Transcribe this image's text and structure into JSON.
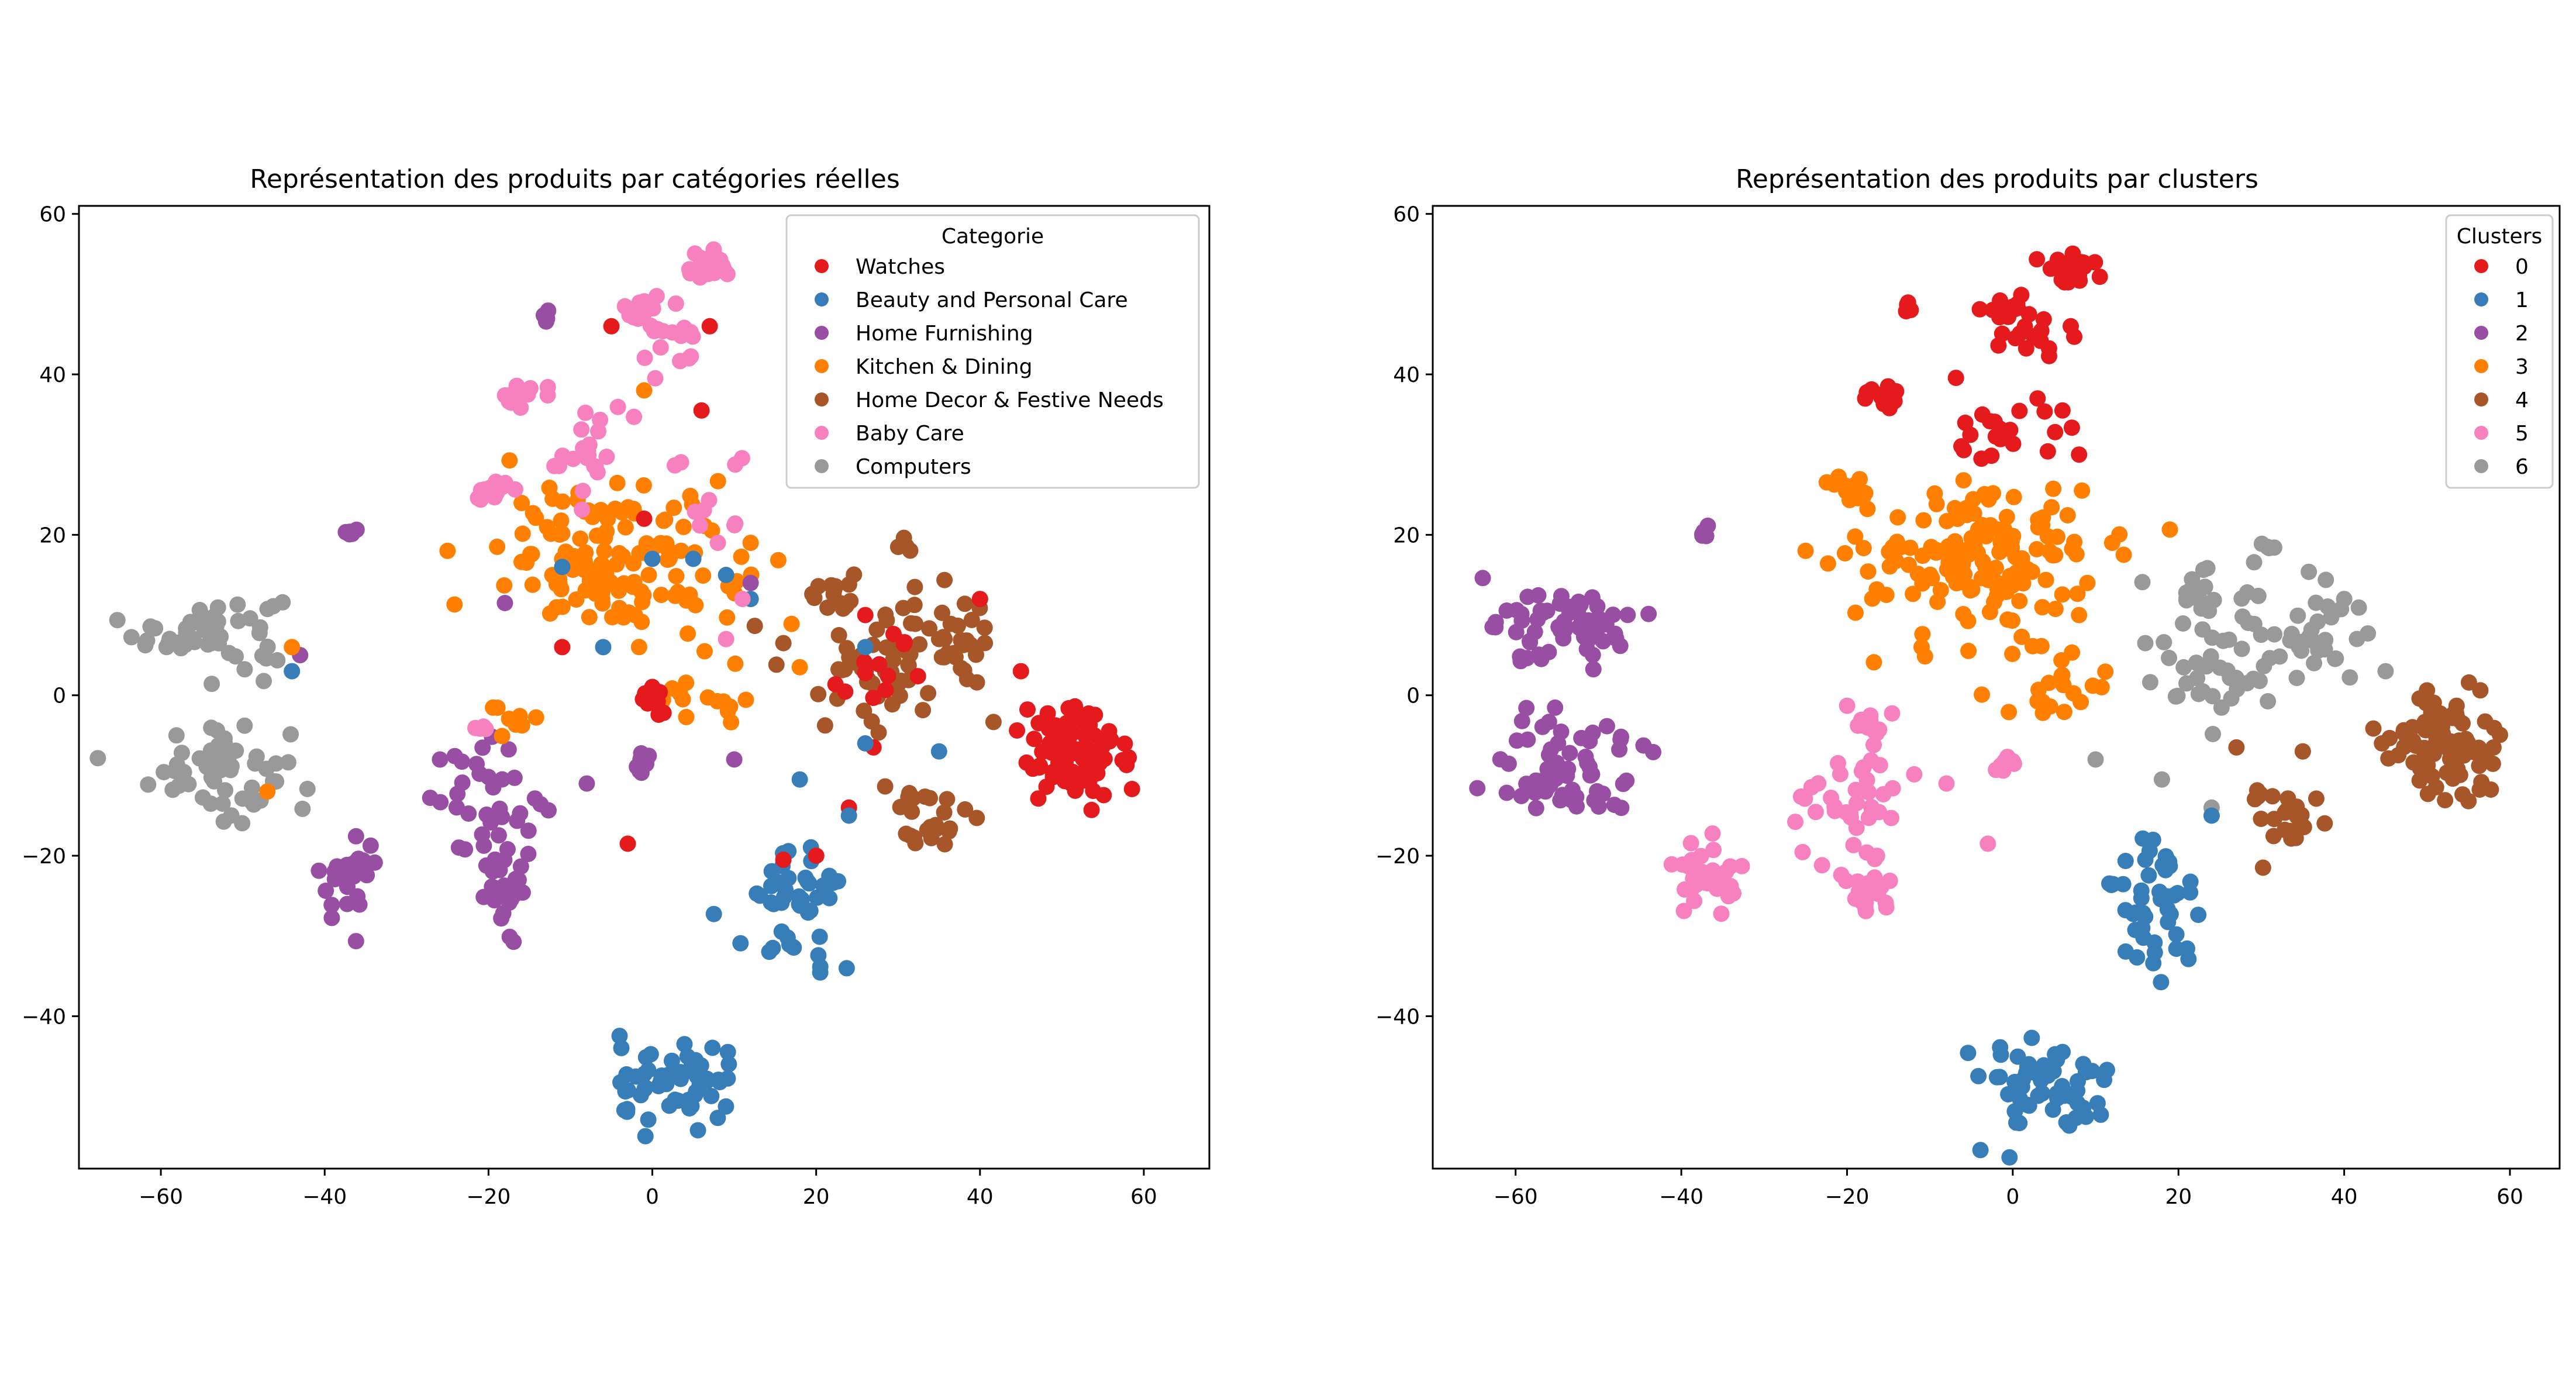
{
  "chart_data": [
    {
      "type": "scatter",
      "title": "Représentation des produits par catégories réelles",
      "xlabel": "",
      "ylabel": "",
      "xlim": [
        -70,
        68
      ],
      "ylim": [
        -59,
        61
      ],
      "xticks": [
        -60,
        -40,
        -20,
        0,
        20,
        40,
        60
      ],
      "xtick_labels": [
        "−60",
        "−40",
        "−20",
        "0",
        "20",
        "40",
        "60"
      ],
      "yticks": [
        -40,
        -20,
        0,
        20,
        40,
        60
      ],
      "ytick_labels": [
        "−40",
        "−20",
        "0",
        "20",
        "40",
        "60"
      ],
      "grid": false,
      "legend": {
        "title": "Categorie",
        "placement": "top-right",
        "entries": [
          {
            "label": "Watches",
            "color": "#e41a1c"
          },
          {
            "label": "Beauty and Personal Care",
            "color": "#377eb8"
          },
          {
            "label": "Home Furnishing",
            "color": "#984ea3"
          },
          {
            "label": "Kitchen & Dining",
            "color": "#ff7f00"
          },
          {
            "label": "Home Decor & Festive Needs",
            "color": "#a65628"
          },
          {
            "label": "Baby Care",
            "color": "#f781bf"
          },
          {
            "label": "Computers",
            "color": "#999999"
          }
        ]
      },
      "clusters": [
        {
          "series": 6,
          "cx": -54,
          "cy": 8,
          "sx": 4.5,
          "sy": 2.3,
          "n": 55
        },
        {
          "series": 6,
          "cx": -53,
          "cy": -9,
          "sx": 4.2,
          "sy": 3.2,
          "n": 55
        },
        {
          "series": 2,
          "cx": -37,
          "cy": -23,
          "sx": 1.8,
          "sy": 2.5,
          "n": 30
        },
        {
          "series": 2,
          "cx": -37,
          "cy": 20.5,
          "sx": 0.5,
          "sy": 0.4,
          "n": 5
        },
        {
          "series": 2,
          "cx": -20,
          "cy": -13,
          "sx": 3.5,
          "sy": 3.5,
          "n": 35
        },
        {
          "series": 2,
          "cx": -17.5,
          "cy": -25,
          "sx": 1.5,
          "sy": 2.5,
          "n": 25
        },
        {
          "series": 2,
          "cx": -1,
          "cy": -8.5,
          "sx": 1,
          "sy": 0.8,
          "n": 8
        },
        {
          "series": 2,
          "cx": -13,
          "cy": 47.5,
          "sx": 0.4,
          "sy": 0.4,
          "n": 4
        },
        {
          "series": 3,
          "cx": -4,
          "cy": 17,
          "sx": 7,
          "sy": 4.5,
          "n": 140
        },
        {
          "series": 3,
          "cx": -17,
          "cy": -3,
          "sx": 1.5,
          "sy": 1.2,
          "n": 10
        },
        {
          "series": 3,
          "cx": 5,
          "cy": 0,
          "sx": 3,
          "sy": 2.5,
          "n": 15
        },
        {
          "series": 5,
          "cx": 7,
          "cy": 53,
          "sx": 1.5,
          "sy": 1,
          "n": 25
        },
        {
          "series": 5,
          "cx": -1,
          "cy": 48,
          "sx": 1.2,
          "sy": 1,
          "n": 15
        },
        {
          "series": 5,
          "cx": 2.5,
          "cy": 44,
          "sx": 2,
          "sy": 2,
          "n": 15
        },
        {
          "series": 5,
          "cx": -16,
          "cy": 37.5,
          "sx": 1.2,
          "sy": 0.8,
          "n": 15
        },
        {
          "series": 5,
          "cx": -20,
          "cy": 25.5,
          "sx": 1.3,
          "sy": 1,
          "n": 15
        },
        {
          "series": 5,
          "cx": -8,
          "cy": 30,
          "sx": 3,
          "sy": 3.5,
          "n": 20
        },
        {
          "series": 5,
          "cx": 8,
          "cy": 27,
          "sx": 2.5,
          "sy": 4,
          "n": 10
        },
        {
          "series": 5,
          "cx": -21,
          "cy": -4,
          "sx": 0.6,
          "sy": 0.5,
          "n": 5
        },
        {
          "series": 4,
          "cx": 22,
          "cy": 13,
          "sx": 1.5,
          "sy": 1.5,
          "n": 15
        },
        {
          "series": 4,
          "cx": 27,
          "cy": 4,
          "sx": 5,
          "sy": 3.5,
          "n": 50
        },
        {
          "series": 4,
          "cx": 37,
          "cy": 8,
          "sx": 3,
          "sy": 3,
          "n": 30
        },
        {
          "series": 4,
          "cx": 31,
          "cy": 18.5,
          "sx": 0.5,
          "sy": 0.4,
          "n": 4
        },
        {
          "series": 4,
          "cx": 33,
          "cy": -15,
          "sx": 2.5,
          "sy": 2.5,
          "n": 25
        },
        {
          "series": 0,
          "cx": 52,
          "cy": -7,
          "sx": 3.5,
          "sy": 3.5,
          "n": 90
        },
        {
          "series": 0,
          "cx": 0,
          "cy": -1.5,
          "sx": 1,
          "sy": 0.8,
          "n": 8
        },
        {
          "series": 0,
          "cx": 28,
          "cy": 3,
          "sx": 3,
          "sy": 2.5,
          "n": 12
        },
        {
          "series": 1,
          "cx": 3,
          "cy": -49,
          "sx": 4,
          "sy": 3,
          "n": 60
        },
        {
          "series": 1,
          "cx": 17,
          "cy": -26,
          "sx": 3,
          "sy": 4,
          "n": 45
        }
      ],
      "sparse_points": [
        {
          "series": 0,
          "x": -3,
          "y": -18.5
        },
        {
          "series": 0,
          "x": -11,
          "y": 6
        },
        {
          "series": 0,
          "x": -1,
          "y": 22
        },
        {
          "series": 0,
          "x": -5,
          "y": 46
        },
        {
          "series": 0,
          "x": 6,
          "y": 35.5
        },
        {
          "series": 0,
          "x": 7,
          "y": 46
        },
        {
          "series": 0,
          "x": 16,
          "y": -20.5
        },
        {
          "series": 0,
          "x": 20,
          "y": -20
        },
        {
          "series": 0,
          "x": 24,
          "y": -14
        },
        {
          "series": 0,
          "x": 27,
          "y": -6.5
        },
        {
          "series": 0,
          "x": 40,
          "y": 12
        },
        {
          "series": 0,
          "x": 45,
          "y": 3
        },
        {
          "series": 0,
          "x": 26,
          "y": 10
        },
        {
          "series": 1,
          "x": -44,
          "y": 3
        },
        {
          "series": 1,
          "x": -11,
          "y": 16
        },
        {
          "series": 1,
          "x": -6,
          "y": 6
        },
        {
          "series": 1,
          "x": 0,
          "y": 17
        },
        {
          "series": 1,
          "x": 5,
          "y": 17
        },
        {
          "series": 1,
          "x": 9,
          "y": 15
        },
        {
          "series": 1,
          "x": 12,
          "y": 12
        },
        {
          "series": 1,
          "x": 18,
          "y": -10.5
        },
        {
          "series": 1,
          "x": 24,
          "y": -15
        },
        {
          "series": 1,
          "x": 26,
          "y": 6
        },
        {
          "series": 1,
          "x": 35,
          "y": -7
        },
        {
          "series": 1,
          "x": 26,
          "y": -6
        },
        {
          "series": 2,
          "x": -43,
          "y": 5
        },
        {
          "series": 2,
          "x": -18,
          "y": 11.5
        },
        {
          "series": 2,
          "x": -8,
          "y": -11
        },
        {
          "series": 2,
          "x": 10,
          "y": -8
        },
        {
          "series": 2,
          "x": 12,
          "y": 14
        },
        {
          "series": 3,
          "x": -47,
          "y": -12
        },
        {
          "series": 3,
          "x": -44,
          "y": 6
        },
        {
          "series": 3,
          "x": -25,
          "y": 18
        },
        {
          "series": 3,
          "x": -1,
          "y": 38
        },
        {
          "series": 3,
          "x": 12,
          "y": 19
        },
        {
          "series": 3,
          "x": 18,
          "y": 3.5
        },
        {
          "series": 4,
          "x": 16,
          "y": 6.5
        },
        {
          "series": 5,
          "x": 9,
          "y": 7
        },
        {
          "series": 5,
          "x": 11,
          "y": 12
        },
        {
          "series": 5,
          "x": 8,
          "y": 19
        }
      ]
    },
    {
      "type": "scatter",
      "title": "Représentation des produits par clusters",
      "xlabel": "",
      "ylabel": "",
      "xlim": [
        -70,
        66
      ],
      "ylim": [
        -59,
        61
      ],
      "xticks": [
        -60,
        -40,
        -20,
        0,
        20,
        40,
        60
      ],
      "xtick_labels": [
        "−60",
        "−40",
        "−20",
        "0",
        "20",
        "40",
        "60"
      ],
      "yticks": [
        -40,
        -20,
        0,
        20,
        40,
        60
      ],
      "ytick_labels": [
        "−40",
        "−20",
        "0",
        "20",
        "40",
        "60"
      ],
      "grid": false,
      "legend": {
        "title": "Clusters",
        "placement": "top-right",
        "entries": [
          {
            "label": "0",
            "color": "#e41a1c"
          },
          {
            "label": "1",
            "color": "#377eb8"
          },
          {
            "label": "2",
            "color": "#984ea3"
          },
          {
            "label": "3",
            "color": "#ff7f00"
          },
          {
            "label": "4",
            "color": "#a65628"
          },
          {
            "label": "5",
            "color": "#f781bf"
          },
          {
            "label": "6",
            "color": "#999999"
          }
        ]
      },
      "clusters": [
        {
          "series": 2,
          "cx": -54,
          "cy": 8,
          "sx": 4.5,
          "sy": 2.3,
          "n": 60
        },
        {
          "series": 2,
          "cx": -53,
          "cy": -9,
          "sx": 4.2,
          "sy": 3.2,
          "n": 60
        },
        {
          "series": 2,
          "cx": -37,
          "cy": 20.5,
          "sx": 0.5,
          "sy": 0.4,
          "n": 5
        },
        {
          "series": 5,
          "cx": -37,
          "cy": -23,
          "sx": 1.8,
          "sy": 2.5,
          "n": 30
        },
        {
          "series": 5,
          "cx": -20,
          "cy": -13,
          "sx": 3.5,
          "sy": 3.5,
          "n": 35
        },
        {
          "series": 5,
          "cx": -17.5,
          "cy": -25,
          "sx": 1.5,
          "sy": 2.5,
          "n": 25
        },
        {
          "series": 5,
          "cx": -17,
          "cy": -3.5,
          "sx": 1.5,
          "sy": 1.2,
          "n": 12
        },
        {
          "series": 5,
          "cx": -1,
          "cy": -8.5,
          "sx": 1,
          "sy": 0.8,
          "n": 8
        },
        {
          "series": 3,
          "cx": -4,
          "cy": 17,
          "sx": 7,
          "sy": 4.5,
          "n": 150
        },
        {
          "series": 3,
          "cx": -20,
          "cy": 25.5,
          "sx": 1.3,
          "sy": 1,
          "n": 15
        },
        {
          "series": 3,
          "cx": 5,
          "cy": 0,
          "sx": 3,
          "sy": 2.5,
          "n": 18
        },
        {
          "series": 0,
          "cx": 7,
          "cy": 53,
          "sx": 1.5,
          "sy": 1,
          "n": 25
        },
        {
          "series": 0,
          "cx": -1,
          "cy": 48,
          "sx": 1.2,
          "sy": 1,
          "n": 15
        },
        {
          "series": 0,
          "cx": 2.5,
          "cy": 44,
          "sx": 2,
          "sy": 2,
          "n": 15
        },
        {
          "series": 0,
          "cx": -16,
          "cy": 37.5,
          "sx": 1.2,
          "sy": 0.8,
          "n": 15
        },
        {
          "series": 0,
          "cx": -13,
          "cy": 48,
          "sx": 0.4,
          "sy": 0.4,
          "n": 4
        },
        {
          "series": 0,
          "cx": 0,
          "cy": 33,
          "sx": 5,
          "sy": 3,
          "n": 20
        },
        {
          "series": 6,
          "cx": 24,
          "cy": 5,
          "sx": 4,
          "sy": 4.5,
          "n": 45
        },
        {
          "series": 6,
          "cx": 37,
          "cy": 8,
          "sx": 3,
          "sy": 3,
          "n": 30
        },
        {
          "series": 6,
          "cx": 22,
          "cy": 13,
          "sx": 1.5,
          "sy": 1.5,
          "n": 12
        },
        {
          "series": 6,
          "cx": 31,
          "cy": 18.5,
          "sx": 0.5,
          "sy": 0.4,
          "n": 4
        },
        {
          "series": 4,
          "cx": 52,
          "cy": -7,
          "sx": 3.5,
          "sy": 3.5,
          "n": 90
        },
        {
          "series": 4,
          "cx": 33,
          "cy": -15,
          "sx": 2.5,
          "sy": 2.5,
          "n": 25
        },
        {
          "series": 1,
          "cx": 3,
          "cy": -49,
          "sx": 4,
          "sy": 3,
          "n": 60
        },
        {
          "series": 1,
          "cx": 17,
          "cy": -26,
          "sx": 3,
          "sy": 4,
          "n": 45
        }
      ],
      "sparse_points": [
        {
          "series": 3,
          "x": -25,
          "y": 18
        },
        {
          "series": 3,
          "x": 12,
          "y": 19
        },
        {
          "series": 3,
          "x": 8,
          "y": 10
        },
        {
          "series": 3,
          "x": -11,
          "y": 6
        },
        {
          "series": 3,
          "x": 9,
          "y": 14
        },
        {
          "series": 0,
          "x": 6,
          "y": 35.5
        },
        {
          "series": 0,
          "x": 7,
          "y": 46
        },
        {
          "series": 0,
          "x": 8,
          "y": 30
        },
        {
          "series": 0,
          "x": 3,
          "y": 37
        },
        {
          "series": 5,
          "x": -8,
          "y": -11
        },
        {
          "series": 5,
          "x": -3,
          "y": -18.5
        },
        {
          "series": 6,
          "x": 10,
          "y": -8
        },
        {
          "series": 6,
          "x": 18,
          "y": -10.5
        },
        {
          "series": 6,
          "x": 16,
          "y": 6.5
        },
        {
          "series": 6,
          "x": 24,
          "y": -14
        },
        {
          "series": 6,
          "x": 35,
          "y": -7
        },
        {
          "series": 6,
          "x": 40,
          "y": 12
        },
        {
          "series": 6,
          "x": 45,
          "y": 3
        },
        {
          "series": 1,
          "x": 24,
          "y": -15
        },
        {
          "series": 1,
          "x": 16,
          "y": -20.5
        },
        {
          "series": 4,
          "x": 27,
          "y": -6.5
        },
        {
          "series": 4,
          "x": 35,
          "y": -7
        }
      ]
    }
  ]
}
